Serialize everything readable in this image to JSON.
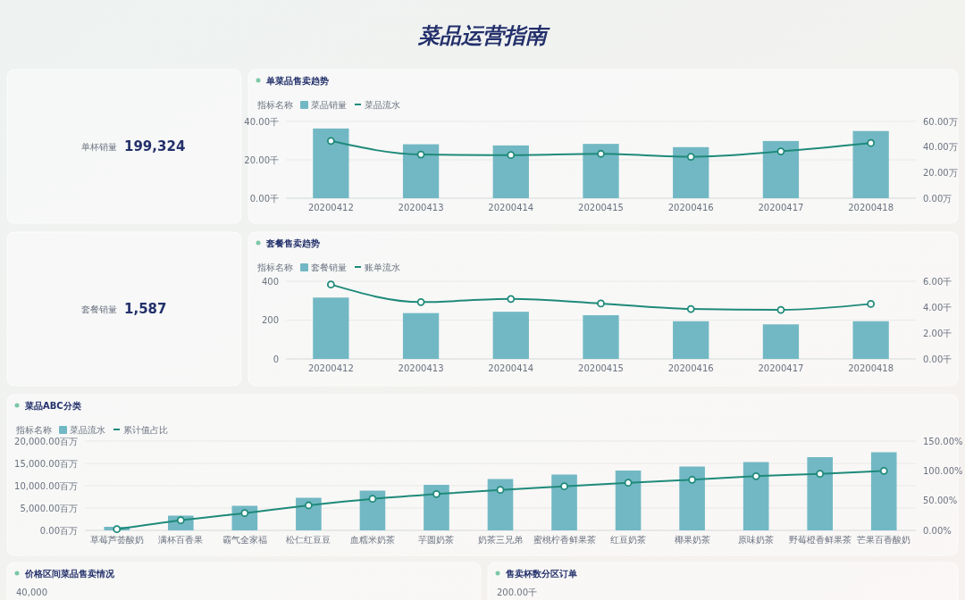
{
  "chart_data": [
    {
      "type": "other",
      "title": "菜品运营指南"
    },
    {
      "type": "other",
      "title": "单杯销量",
      "annotations": [
        "199,324"
      ]
    },
    {
      "type": "bar",
      "title": "单菜品售卖趋势",
      "legend_title": "指标名称",
      "legend": "top left",
      "grid": "y",
      "marker": "circle",
      "categories": [
        "20200412",
        "20200413",
        "20200414",
        "20200415",
        "20200416",
        "20200417",
        "20200418"
      ],
      "series": [
        {
          "name": "菜品销量",
          "type": "bar",
          "color": "#72b8c4",
          "values": [
            36.3,
            28.1,
            27.5,
            28.3,
            26.6,
            29.8,
            35.0
          ]
        },
        {
          "name": "菜品流水",
          "type": "line",
          "axis": "y2",
          "color": "#1f8a7a",
          "values": [
            44.8,
            34.1,
            33.7,
            34.7,
            32.4,
            36.6,
            43.1
          ]
        }
      ],
      "ylim": [
        0,
        40
      ],
      "yticks": [
        {
          "value": 0,
          "label": "0.00千"
        },
        {
          "value": 20,
          "label": "20.00千"
        },
        {
          "value": 40,
          "label": "40.00千"
        }
      ],
      "y2lim": [
        0,
        60
      ],
      "y2ticks": [
        {
          "value": 0,
          "label": "0.00万"
        },
        {
          "value": 20,
          "label": "20.00万"
        },
        {
          "value": 40,
          "label": "40.00万"
        },
        {
          "value": 60,
          "label": "60.00万"
        }
      ]
    },
    {
      "type": "other",
      "title": "套餐销量",
      "annotations": [
        "1,587"
      ]
    },
    {
      "type": "bar",
      "title": "套餐售卖趋势",
      "legend_title": "指标名称",
      "legend": "top left",
      "grid": "y",
      "marker": "circle",
      "categories": [
        "20200412",
        "20200413",
        "20200414",
        "20200415",
        "20200416",
        "20200417",
        "20200418"
      ],
      "series": [
        {
          "name": "套餐销量",
          "type": "bar",
          "color": "#72b8c4",
          "values": [
            316,
            236,
            243,
            225,
            194,
            178,
            194
          ]
        },
        {
          "name": "账单流水",
          "type": "line",
          "axis": "y2",
          "color": "#1f8a7a",
          "values": [
            5.75,
            4.39,
            4.63,
            4.28,
            3.86,
            3.79,
            4.25
          ]
        }
      ],
      "ylim": [
        0,
        400
      ],
      "yticks": [
        0,
        200,
        400
      ],
      "y2lim": [
        0,
        6
      ],
      "y2ticks": [
        {
          "value": 0,
          "label": "0.00千"
        },
        {
          "value": 2,
          "label": "2.00千"
        },
        {
          "value": 4,
          "label": "4.00千"
        },
        {
          "value": 6,
          "label": "6.00千"
        }
      ]
    },
    {
      "type": "bar",
      "title": "菜品ABC分类",
      "legend_title": "指标名称",
      "legend": "top left",
      "grid": "y",
      "marker": "circle",
      "categories": [
        "草莓芦荟酸奶",
        "满杯百香果",
        "霸气全家福",
        "松仁红豆豆",
        "血糯米奶茶",
        "芋圆奶茶",
        "奶茶三兄弟",
        "蜜桃柠香鲜果茶",
        "红豆奶茶",
        "椰果奶茶",
        "原味奶茶",
        "野莓橙香鲜果茶",
        "芒果百香酸奶"
      ],
      "series": [
        {
          "name": "菜品流水",
          "type": "bar",
          "color": "#72b8c4",
          "values": [
            800,
            3300,
            5500,
            7300,
            8900,
            10200,
            11500,
            12500,
            13400,
            14300,
            15300,
            16400,
            17500
          ]
        },
        {
          "name": "累计值占比",
          "type": "line",
          "axis": "y2",
          "color": "#1f8a7a",
          "values": [
            2,
            17,
            29,
            42,
            53,
            61,
            68,
            74,
            80,
            85,
            91,
            95,
            100
          ]
        }
      ],
      "ylim": [
        0,
        20000
      ],
      "yticks": [
        {
          "value": 0,
          "label": "0.00百万"
        },
        {
          "value": 5000,
          "label": "5,000.00百万"
        },
        {
          "value": 10000,
          "label": "10,000.00百万"
        },
        {
          "value": 15000,
          "label": "15,000.00百万"
        },
        {
          "value": 20000,
          "label": "20,000.00百万"
        }
      ],
      "y2lim": [
        0,
        150
      ],
      "y2ticks": [
        {
          "value": 0,
          "label": "0.00%"
        },
        {
          "value": 50,
          "label": "50.00%"
        },
        {
          "value": 100,
          "label": "100.00%"
        },
        {
          "value": 150,
          "label": "150.00%"
        }
      ]
    },
    {
      "type": "other",
      "title": "价格区间菜品售卖情况",
      "annotations": [
        "40,000"
      ]
    },
    {
      "type": "other",
      "title": "售卖杯数分区订单",
      "annotations": [
        "200.00千"
      ]
    }
  ]
}
